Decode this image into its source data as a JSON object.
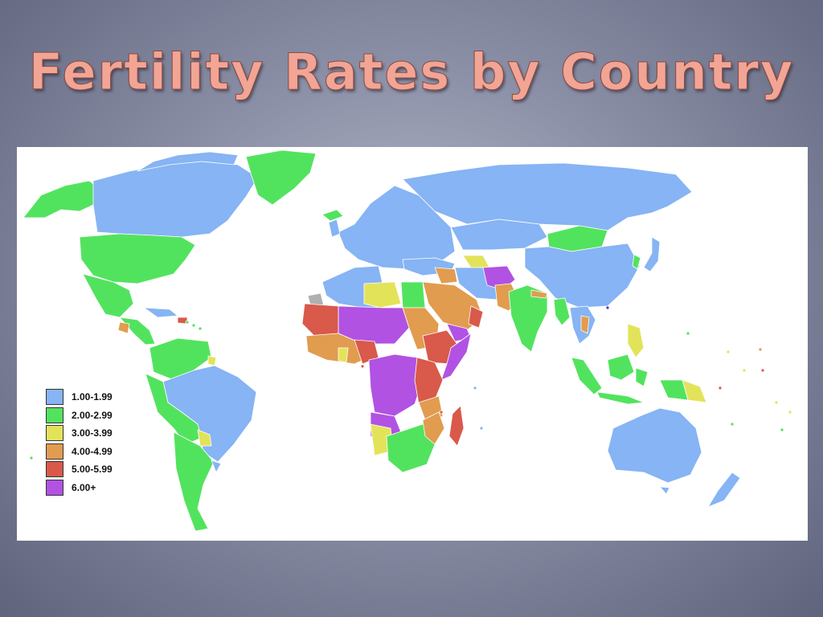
{
  "title": "Fertility Rates by Country",
  "colors": {
    "ocean": "#ffffff",
    "nodata": "#b0b0b0",
    "blue": "#86b4f4",
    "green": "#52e35e",
    "yellow": "#e3e35a",
    "orange": "#e19c4f",
    "red": "#d9594b",
    "purple": "#b152e3"
  },
  "legend": {
    "items": [
      {
        "label": "1.00-1.99",
        "color": "#86b4f4"
      },
      {
        "label": "2.00-2.99",
        "color": "#52e35e"
      },
      {
        "label": "3.00-3.99",
        "color": "#e3e35a"
      },
      {
        "label": "4.00-4.99",
        "color": "#e19c4f"
      },
      {
        "label": "5.00-5.99",
        "color": "#d9594b"
      },
      {
        "label": "6.00+",
        "color": "#b152e3"
      }
    ]
  }
}
